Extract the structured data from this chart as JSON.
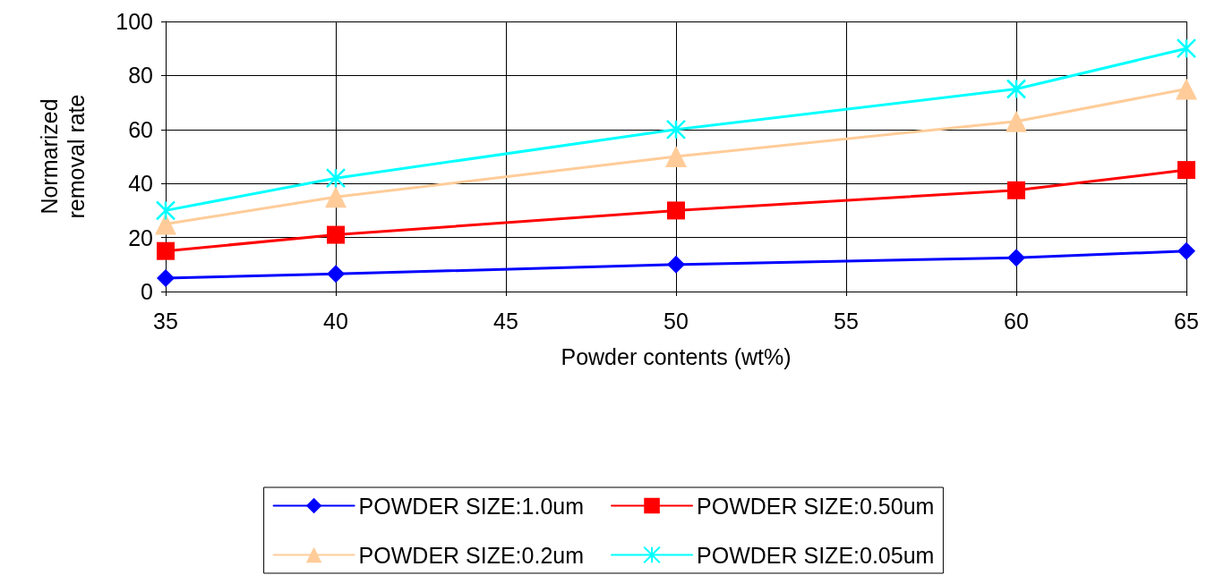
{
  "chart_data": {
    "type": "line",
    "xlabel": "Powder contents (wt%)",
    "ylabel": "Normarized removal rate",
    "x": [
      35,
      40,
      50,
      60,
      65
    ],
    "xlim": [
      35,
      65
    ],
    "xticks": [
      35,
      40,
      45,
      50,
      55,
      60,
      65
    ],
    "ylim": [
      0,
      100
    ],
    "yticks": [
      0,
      20,
      40,
      60,
      80,
      100
    ],
    "grid": true,
    "legend": "bottom",
    "line_style": "solid",
    "series": [
      {
        "name": "POWDER SIZE:1.0um",
        "color": "#0000ff",
        "marker": "diamond",
        "values": [
          5,
          6.5,
          10,
          12.5,
          15
        ]
      },
      {
        "name": "POWDER SIZE:0.50um",
        "color": "#ff0000",
        "marker": "square",
        "values": [
          15,
          21,
          30,
          37.5,
          45
        ]
      },
      {
        "name": "POWDER SIZE:0.2um",
        "color": "#ffcc99",
        "marker": "triangle",
        "values": [
          25,
          35,
          50,
          63,
          75
        ]
      },
      {
        "name": "POWDER SIZE:0.05um",
        "color": "#00ffff",
        "marker": "cross",
        "values": [
          30,
          42,
          60,
          75,
          90
        ]
      }
    ]
  }
}
